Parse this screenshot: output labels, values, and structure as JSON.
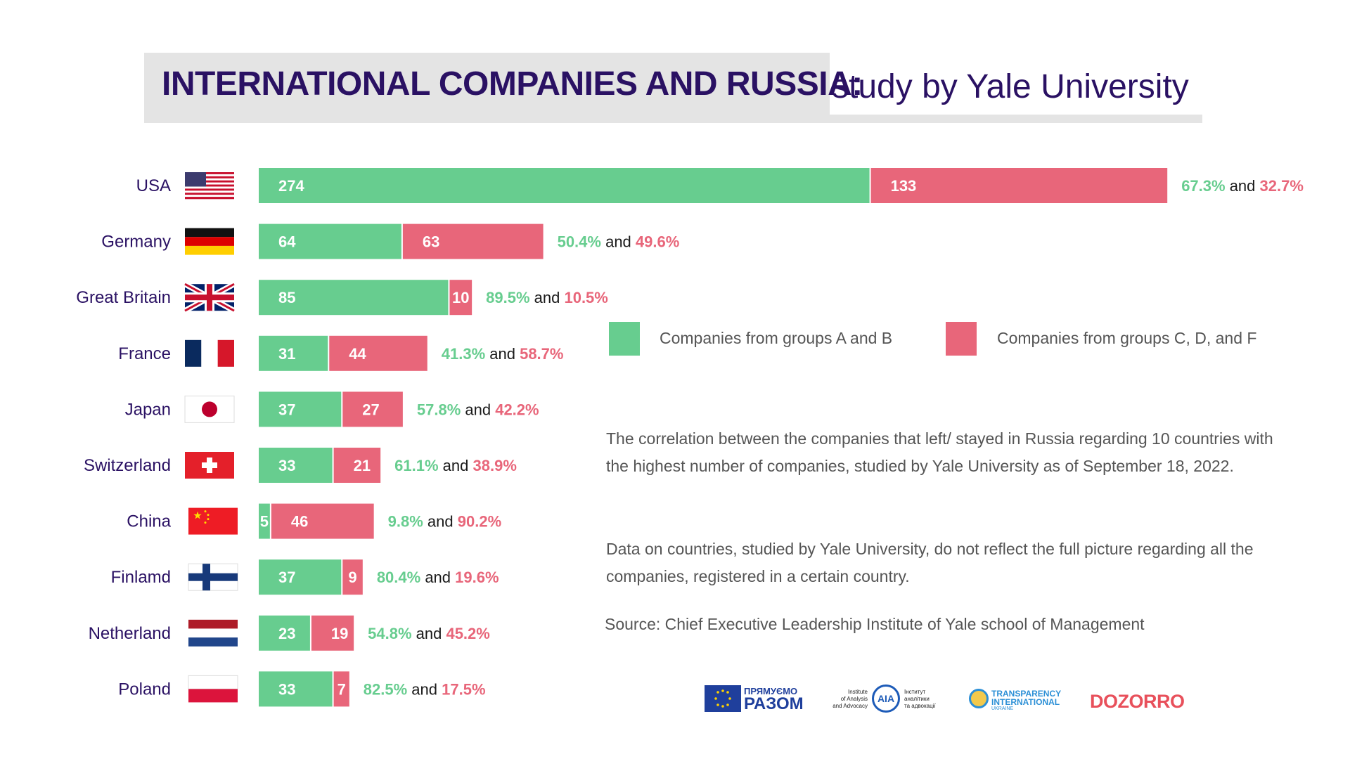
{
  "title": {
    "bold": "INTERNATIONAL COMPANIES AND RUSSIA:",
    "light": "study by Yale University"
  },
  "colors": {
    "ab": "#67cd8f",
    "cdf": "#e8667a",
    "title": "#2a1163"
  },
  "legend": {
    "ab": "Companies from groups A and B",
    "cdf": "Companies from groups C, D, and F"
  },
  "chart_data": {
    "type": "bar",
    "orientation": "horizontal",
    "stacked": true,
    "categories": [
      "USA",
      "Germany",
      "Great Britain",
      "France",
      "Japan",
      "Switzerland",
      "China",
      "Finlamd",
      "Netherland",
      "Poland"
    ],
    "series": [
      {
        "name": "Companies from groups A and B",
        "values": [
          274,
          64,
          85,
          31,
          37,
          33,
          5,
          37,
          23,
          33
        ],
        "percent": [
          "67.3%",
          "50.4%",
          "89.5%",
          "41.3%",
          "57.8%",
          "61.1%",
          "9.8%",
          "80.4%",
          "54.8%",
          "82.5%"
        ]
      },
      {
        "name": "Companies from groups C, D, and F",
        "values": [
          133,
          63,
          10,
          44,
          27,
          21,
          46,
          9,
          19,
          7
        ],
        "percent": [
          "32.7%",
          "49.6%",
          "10.5%",
          "58.7%",
          "42.2%",
          "38.9%",
          "90.2%",
          "19.6%",
          "45.2%",
          "17.5%"
        ]
      }
    ],
    "joiner": "and"
  },
  "flags": [
    "usa-flag",
    "germany-flag",
    "uk-flag",
    "france-flag",
    "japan-flag",
    "switzerland-flag",
    "china-flag",
    "finland-flag",
    "netherlands-flag",
    "poland-flag"
  ],
  "description": [
    "The correlation between the companies that left/ stayed in Russia regarding 10 countries with the highest number of companies, studied by Yale University as of September 18, 2022.",
    "Data on countries, studied by Yale University, do not reflect the full picture regarding all the companies, registered in a certain country."
  ],
  "source": "Source:  Chief Executive Leadership Institute of Yale school of Management",
  "logos": {
    "pryamuemo_1": "ПРЯМУЄМО",
    "pryamuemo_2": "РАЗОМ",
    "aia_left": [
      "Institute",
      "of Analysis",
      "and Advocacy"
    ],
    "aia_mark": "AIA",
    "aia_right": [
      "Інститут",
      "аналітики",
      "та адвокації"
    ],
    "ti_1": "TRANSPARENCY",
    "ti_2": "INTERNATIONAL",
    "ti_3": "UKRAINE",
    "dozorro": "DOZORRO"
  }
}
